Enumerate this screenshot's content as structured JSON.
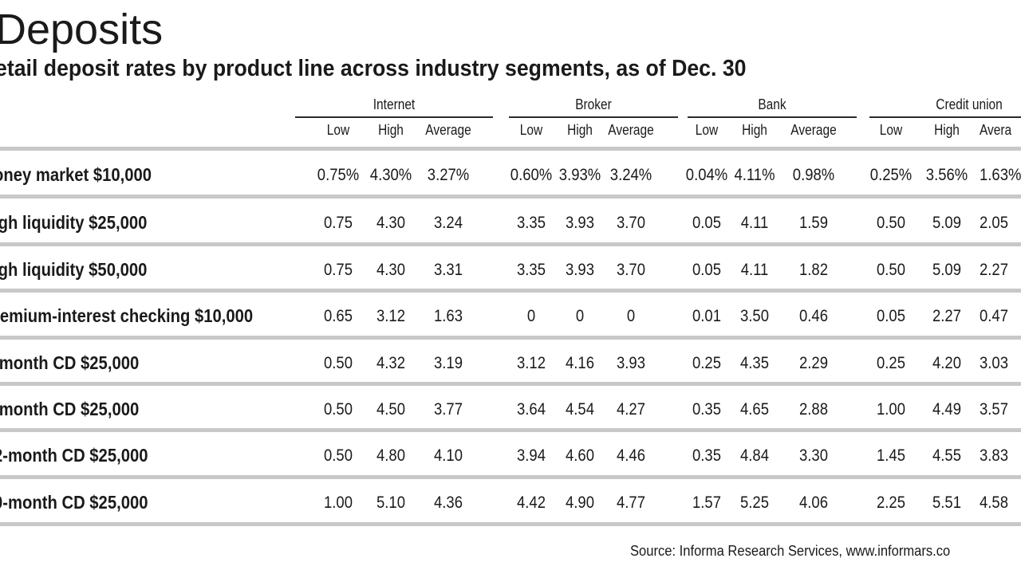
{
  "chart_data": {
    "type": "table",
    "title": "Deposits",
    "subtitle": "etail deposit rates by product line across industry segments, as of Dec. 30",
    "source": "Source: Informa Research Services, www.informars.co",
    "groups": [
      "Internet",
      "Broker",
      "Bank",
      "Credit union"
    ],
    "columns": [
      "Low",
      "High",
      "Average",
      "Low",
      "High",
      "Average",
      "Low",
      "High",
      "Average",
      "Low",
      "High",
      "Avera"
    ],
    "rows": [
      {
        "label": "oney market $10,000",
        "values": [
          "0.75%",
          "4.30%",
          "3.27%",
          "0.60%",
          "3.93%",
          "3.24%",
          "0.04%",
          "4.11%",
          "0.98%",
          "0.25%",
          "3.56%",
          "1.63%"
        ]
      },
      {
        "label": "igh liquidity $25,000",
        "values": [
          "0.75",
          "4.30",
          "3.24",
          "3.35",
          "3.93",
          "3.70",
          "0.05",
          "4.11",
          "1.59",
          "0.50",
          "5.09",
          "2.05"
        ]
      },
      {
        "label": "igh liquidity $50,000",
        "values": [
          "0.75",
          "4.30",
          "3.31",
          "3.35",
          "3.93",
          "3.70",
          "0.05",
          "4.11",
          "1.82",
          "0.50",
          "5.09",
          "2.27"
        ]
      },
      {
        "label": "remium-interest checking $10,000",
        "values": [
          "0.65",
          "3.12",
          "1.63",
          "0",
          "0",
          "0",
          "0.01",
          "3.50",
          "0.46",
          "0.05",
          "2.27",
          "0.47"
        ]
      },
      {
        "label": "-month CD $25,000",
        "values": [
          "0.50",
          "4.32",
          "3.19",
          "3.12",
          "4.16",
          "3.93",
          "0.25",
          "4.35",
          "2.29",
          "0.25",
          "4.20",
          "3.03"
        ]
      },
      {
        "label": "-month CD $25,000",
        "values": [
          "0.50",
          "4.50",
          "3.77",
          "3.64",
          "4.54",
          "4.27",
          "0.35",
          "4.65",
          "2.88",
          "1.00",
          "4.49",
          "3.57"
        ]
      },
      {
        "label": "2-month CD $25,000",
        "values": [
          "0.50",
          "4.80",
          "4.10",
          "3.94",
          "4.60",
          "4.46",
          "0.35",
          "4.84",
          "3.30",
          "1.45",
          "4.55",
          "3.83"
        ]
      },
      {
        "label": "0-month CD $25,000",
        "values": [
          "1.00",
          "5.10",
          "4.36",
          "4.42",
          "4.90",
          "4.77",
          "1.57",
          "5.25",
          "4.06",
          "2.25",
          "5.51",
          "4.58"
        ]
      }
    ]
  }
}
